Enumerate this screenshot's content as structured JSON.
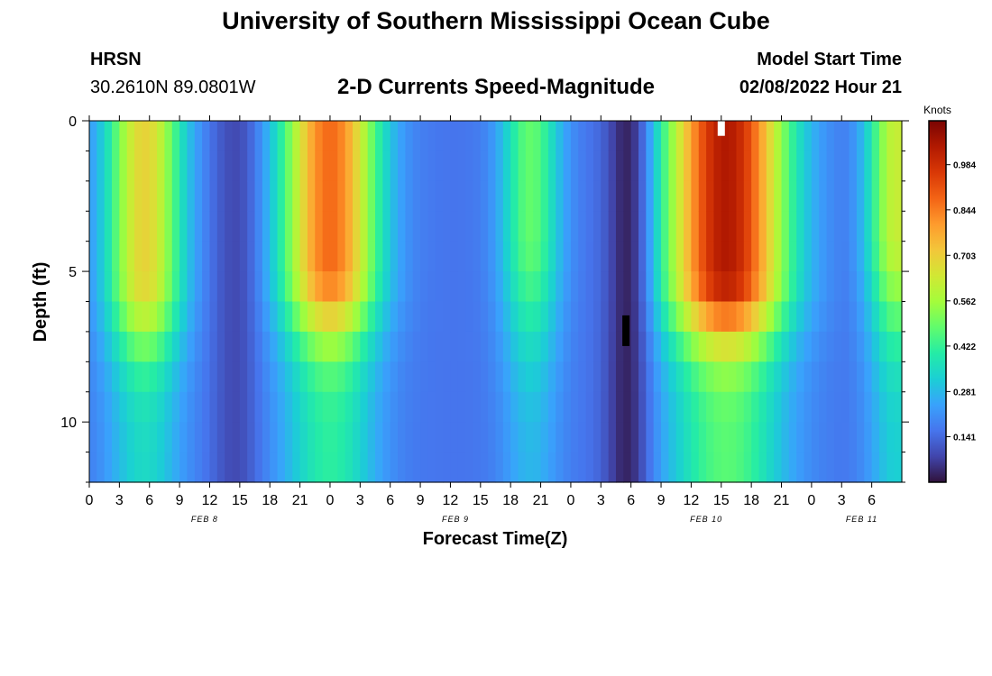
{
  "header": {
    "title": "University of Southern Mississippi Ocean Cube",
    "station": "HRSN",
    "coords": "30.2610N  89.0801W",
    "subtitle": "2-D Currents Speed-Magnitude",
    "model_label": "Model Start Time",
    "model_time": "02/08/2022 Hour 21"
  },
  "footer": {
    "title": "University of Southern Mississippi Ocean Cube"
  },
  "colors": {
    "colormap": [
      "#30123b",
      "#4145ab",
      "#4675ed",
      "#39a2fc",
      "#1bcfd4",
      "#24eca6",
      "#61fc6c",
      "#a4fc3b",
      "#d1e834",
      "#f3c63a",
      "#fe9b2d",
      "#f36315",
      "#d93806",
      "#b11901",
      "#7a0402"
    ]
  },
  "chart_data": {
    "type": "heatmap",
    "title": "2-D Currents Speed-Magnitude",
    "xlabel": "Forecast Time(Z)",
    "ylabel": "Depth (ft)",
    "x_range_hours": [
      0,
      81
    ],
    "y_range_ft": [
      0,
      12
    ],
    "x_tick_labels": [
      "0",
      "3",
      "6",
      "9",
      "12",
      "15",
      "18",
      "21",
      "0",
      "3",
      "6",
      "9",
      "12",
      "15",
      "18",
      "21",
      "0",
      "3",
      "6",
      "9",
      "12",
      "15",
      "18",
      "21",
      "0",
      "3",
      "6"
    ],
    "day_labels": [
      {
        "label": "FEB 8",
        "hour": 11.5
      },
      {
        "label": "FEB 9",
        "hour": 36.5
      },
      {
        "label": "FEB 10",
        "hour": 61.5
      },
      {
        "label": "FEB 11",
        "hour": 77
      }
    ],
    "y_ticks": [
      0,
      5,
      10
    ],
    "colorbar": {
      "label": "Knots",
      "min": 0.0,
      "max": 1.12,
      "ticks": [
        0.141,
        0.281,
        0.422,
        0.562,
        0.703,
        0.844,
        0.984
      ]
    },
    "depth_layers_ft": [
      0.5,
      1.5,
      2.5,
      3.5,
      4.5,
      5.5,
      6.5,
      7.5,
      8.5,
      9.5,
      10.5,
      11.5
    ],
    "peaks": [
      {
        "hour": 5.5,
        "speed_knots": 0.69,
        "half_width_h": 3.2,
        "depth_max_ft": 9.0,
        "depth_decay_ft": 2.8
      },
      {
        "hour": 24.0,
        "speed_knots": 0.87,
        "half_width_h": 4.0,
        "depth_max_ft": 8.5,
        "depth_decay_ft": 2.6
      },
      {
        "hour": 44.0,
        "speed_knots": 0.48,
        "half_width_h": 2.5,
        "depth_max_ft": 6.5,
        "depth_decay_ft": 4.0
      },
      {
        "hour": 63.5,
        "speed_knots": 1.04,
        "half_width_h": 5.0,
        "depth_max_ft": 9.0,
        "depth_decay_ft": 2.4
      },
      {
        "hour": 80.5,
        "speed_knots": 0.62,
        "half_width_h": 2.5,
        "depth_max_ft": 6.5,
        "depth_decay_ft": 3.5
      }
    ],
    "troughs": [
      {
        "hour": 14.5,
        "speed_knots": 0.09
      },
      {
        "hour": 53.5,
        "speed_knots": 0.03
      }
    ],
    "missing_cells": [
      {
        "hour": 63.0,
        "depth_ft": 0.5,
        "color": "#ffffff"
      },
      {
        "hour": 53.5,
        "depth_ft": 7.0,
        "color": "#000000"
      }
    ]
  }
}
